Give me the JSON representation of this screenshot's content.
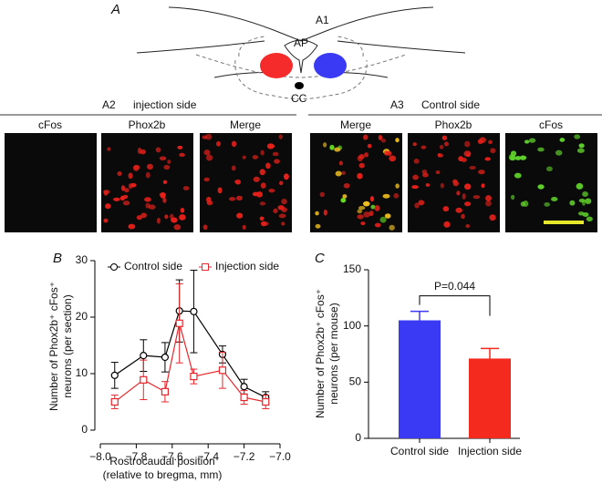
{
  "figure": {
    "panel_a": {
      "label": "A",
      "diagram_labels": [
        "A1",
        "AP",
        "CC"
      ]
    },
    "panel_a2": {
      "label": "A2",
      "caption": "injection side",
      "images": [
        "cFos",
        "Phox2b",
        "Merge"
      ]
    },
    "panel_a3": {
      "label": "A3",
      "caption": "Control side",
      "images": [
        "Merge",
        "Phox2b",
        "cFos"
      ]
    }
  },
  "chart_data": [
    {
      "type": "line",
      "panel_label": "B",
      "x": [
        -7.92,
        -7.76,
        -7.64,
        -7.56,
        -7.48,
        -7.32,
        -7.2,
        -7.08
      ],
      "series": [
        {
          "name": "Control side",
          "color": "#000000",
          "marker": "circle",
          "values": [
            9.7,
            13.2,
            12.9,
            21.1,
            21.0,
            13.4,
            7.7,
            5.8
          ],
          "errors": [
            2.3,
            2.8,
            2.6,
            5.5,
            7.3,
            1.5,
            1.3,
            1.0
          ]
        },
        {
          "name": "Injection side",
          "color": "#e8262b",
          "marker": "square",
          "values": [
            5.0,
            8.9,
            6.8,
            18.9,
            9.5,
            10.6,
            5.8,
            5.0
          ],
          "errors": [
            1.2,
            3.5,
            1.8,
            7.0,
            1.3,
            3.2,
            1.2,
            1.2
          ]
        }
      ],
      "xlim": [
        -8.0,
        -7.0
      ],
      "xticks": [
        {
          "value": -8.0,
          "label": "−8.0"
        },
        {
          "value": -7.8,
          "label": "−7.8"
        },
        {
          "value": -7.6,
          "label": "−7.6"
        },
        {
          "value": -7.4,
          "label": "−7.4"
        },
        {
          "value": -7.2,
          "label": "−7.2"
        },
        {
          "value": -7.0,
          "label": "−7.0"
        }
      ],
      "ylim": [
        0,
        30
      ],
      "yticks": [
        0,
        10,
        20,
        30
      ],
      "ylabel": [
        "Number of Phox2b⁺ cFos⁺",
        "neurons (per section)"
      ],
      "xlabel": [
        "Rostrocaudal position",
        "(relative to bregma, mm)"
      ],
      "legend": "top"
    },
    {
      "type": "bar",
      "panel_label": "C",
      "categories": [
        "Control side",
        "Injection side"
      ],
      "values": [
        105,
        71
      ],
      "errors": [
        8,
        9
      ],
      "colors": [
        "#3a3af5",
        "#f52a1e"
      ],
      "ylim": [
        0,
        150
      ],
      "yticks": [
        0,
        50,
        100,
        150
      ],
      "ylabel": [
        "Number of Phox2b⁺ cFos⁺",
        "neurons (per mouse)"
      ],
      "annotation": "P=0.044"
    }
  ]
}
